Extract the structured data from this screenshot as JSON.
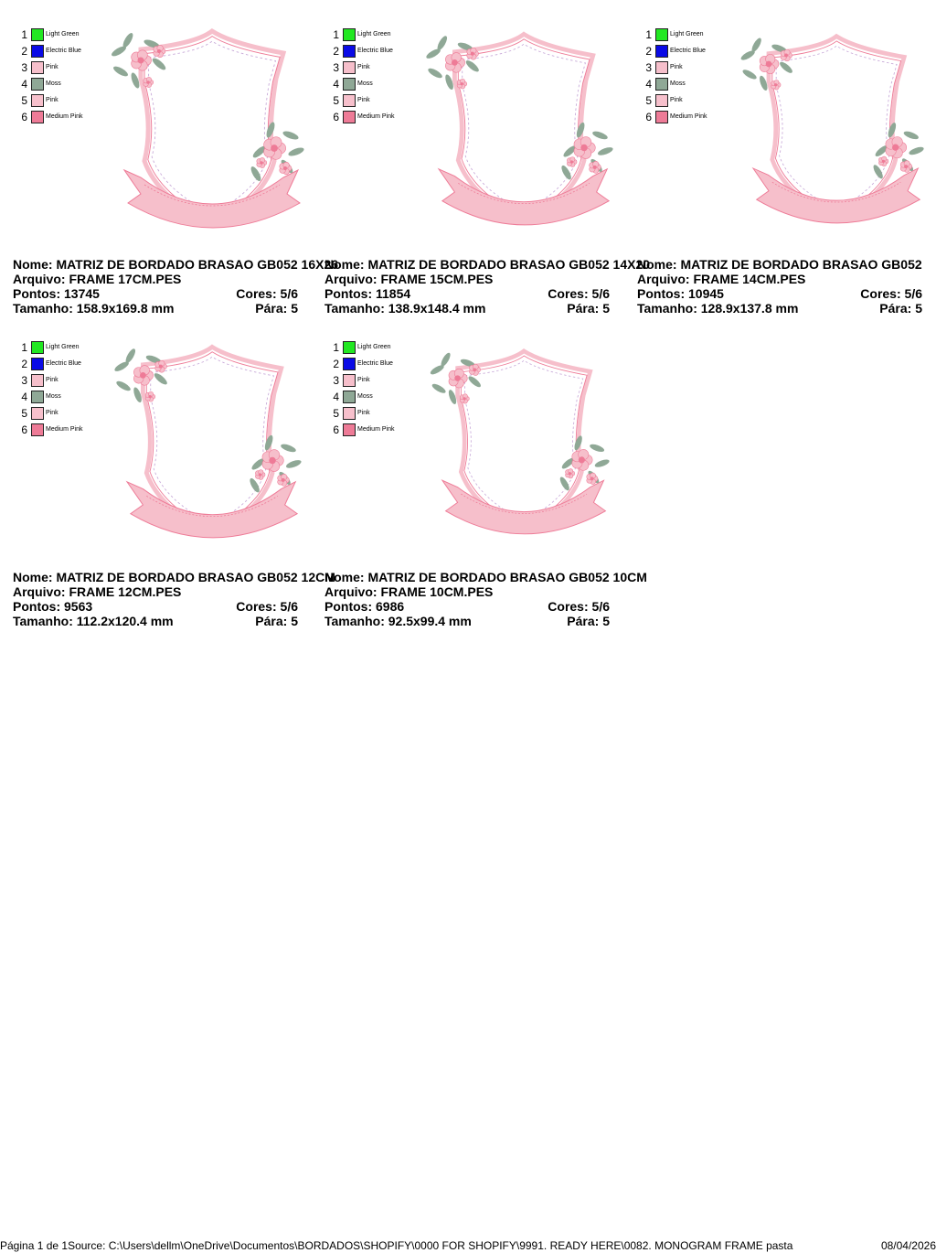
{
  "designs": [
    {
      "nome_label": "Nome:",
      "nome": "MATRIZ DE BORDADO BRASAO GB052 16X26",
      "arquivo_label": "Arquivo:",
      "arquivo": "FRAME 17CM.PES",
      "pontos_label": "Pontos:",
      "pontos": "13745",
      "cores_label": "Cores:",
      "cores": "5/6",
      "tamanho_label": "Tamanho:",
      "tamanho": "158.9x169.8 mm",
      "para_label": "Pára:",
      "para": "5"
    },
    {
      "nome_label": "Nome:",
      "nome": "MATRIZ DE BORDADO BRASAO GB052 14X20",
      "arquivo_label": "Arquivo:",
      "arquivo": "FRAME 15CM.PES",
      "pontos_label": "Pontos:",
      "pontos": "11854",
      "cores_label": "Cores:",
      "cores": "5/6",
      "tamanho_label": "Tamanho:",
      "tamanho": "138.9x148.4 mm",
      "para_label": "Pára:",
      "para": "5"
    },
    {
      "nome_label": "Nome:",
      "nome": "MATRIZ DE BORDADO BRASAO GB052",
      "arquivo_label": "Arquivo:",
      "arquivo": "FRAME 14CM.PES",
      "pontos_label": "Pontos:",
      "pontos": "10945",
      "cores_label": "Cores:",
      "cores": "5/6",
      "tamanho_label": "Tamanho:",
      "tamanho": "128.9x137.8 mm",
      "para_label": "Pára:",
      "para": "5"
    },
    {
      "nome_label": "Nome:",
      "nome": "MATRIZ DE BORDADO BRASAO GB052 12CM",
      "arquivo_label": "Arquivo:",
      "arquivo": "FRAME 12CM.PES",
      "pontos_label": "Pontos:",
      "pontos": "9563",
      "cores_label": "Cores:",
      "cores": "5/6",
      "tamanho_label": "Tamanho:",
      "tamanho": "112.2x120.4 mm",
      "para_label": "Pára:",
      "para": "5"
    },
    {
      "nome_label": "Nome:",
      "nome": "MATRIZ DE BORDADO BRASAO GB052 10CM",
      "arquivo_label": "Arquivo:",
      "arquivo": "FRAME 10CM.PES",
      "pontos_label": "Pontos:",
      "pontos": "6986",
      "cores_label": "Cores:",
      "cores": "5/6",
      "tamanho_label": "Tamanho:",
      "tamanho": "92.5x99.4 mm",
      "para_label": "Pára:",
      "para": "5"
    }
  ],
  "palette": [
    {
      "num": "1",
      "name": "Light Green",
      "color": "#22e822"
    },
    {
      "num": "2",
      "name": "Electric Blue",
      "color": "#0a0ae6"
    },
    {
      "num": "3",
      "name": "Pink",
      "color": "#f6bfcb"
    },
    {
      "num": "4",
      "name": "Moss",
      "color": "#8fa896"
    },
    {
      "num": "5",
      "name": "Pink",
      "color": "#f7c0cc"
    },
    {
      "num": "6",
      "name": "Medium Pink",
      "color": "#ee7b97"
    }
  ],
  "footer": {
    "page": "Página 1 de 1",
    "source": "Source: C:\\Users\\dellm\\OneDrive\\Documentos\\BORDADOS\\SHOPIFY\\0000 FOR SHOPIFY\\9991. READY HERE\\0082. MONOGRAM FRAME pasta",
    "date": "08/04/2026"
  }
}
